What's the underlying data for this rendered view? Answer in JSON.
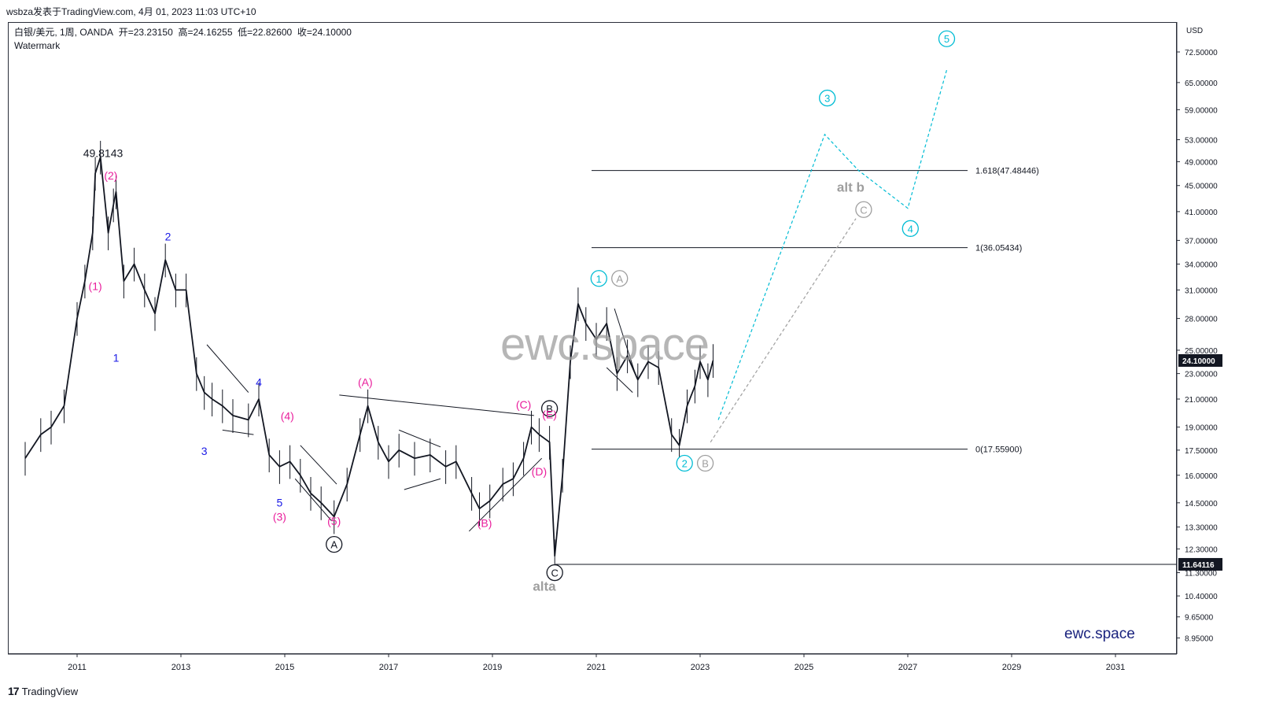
{
  "header": {
    "source_line": "wsbza发表于TradingView.com, 4月 01, 2023 11:03 UTC+10"
  },
  "legend": {
    "symbol": "白银/美元, 1周, OANDA",
    "open": "开=23.23150",
    "high": "高=24.16255",
    "low": "低=22.82600",
    "close": "收=24.10000",
    "watermark_label": "Watermark"
  },
  "watermark_text": "ewc.space",
  "brand_text": "ewc.space",
  "footer": {
    "logo": "17",
    "name": "TradingView"
  },
  "chart_data": {
    "type": "line",
    "title": "白银/美元, 1周, OANDA",
    "price_scale_unit": "USD",
    "scale": "log",
    "x_range": [
      2010.0,
      2032.5
    ],
    "y_range": [
      8.95,
      75.0
    ],
    "x_ticks": [
      "2011",
      "2013",
      "2015",
      "2017",
      "2019",
      "2021",
      "2023",
      "2025",
      "2027",
      "2029",
      "2031"
    ],
    "y_ticks": [
      "72.50000",
      "65.00000",
      "59.00000",
      "53.00000",
      "49.00000",
      "45.00000",
      "41.00000",
      "37.00000",
      "34.00000",
      "31.00000",
      "28.00000",
      "25.00000",
      "23.00000",
      "21.00000",
      "19.00000",
      "17.50000",
      "16.00000",
      "14.50000",
      "13.30000",
      "12.30000",
      "11.30000",
      "10.40000",
      "9.65000",
      "8.95000"
    ],
    "last_price": {
      "label": "24.10000",
      "value": 24.1
    },
    "low_line": {
      "label": "11.64116",
      "value": 11.64116
    },
    "series": [
      {
        "color": "#131722",
        "x": [
          2010.0,
          2010.3,
          2010.5,
          2010.75,
          2011.0,
          2011.15,
          2011.3,
          2011.35,
          2011.45,
          2011.6,
          2011.7,
          2011.75,
          2011.9,
          2012.1,
          2012.3,
          2012.5,
          2012.7,
          2012.9,
          2013.1,
          2013.3,
          2013.45,
          2013.6,
          2013.8,
          2014.0,
          2014.3,
          2014.5,
          2014.7,
          2014.9,
          2015.1,
          2015.3,
          2015.5,
          2015.7,
          2015.95,
          2016.2,
          2016.45,
          2016.6,
          2016.8,
          2017.0,
          2017.2,
          2017.5,
          2017.8,
          2018.1,
          2018.3,
          2018.6,
          2018.75,
          2018.95,
          2019.2,
          2019.4,
          2019.6,
          2019.75,
          2019.9,
          2020.1,
          2020.2,
          2020.35,
          2020.5,
          2020.65,
          2020.8,
          2021.0,
          2021.2,
          2021.4,
          2021.6,
          2021.8,
          2022.0,
          2022.2,
          2022.45,
          2022.6,
          2022.75,
          2022.9,
          2023.0,
          2023.15,
          2023.25
        ],
        "values": [
          17.0,
          18.5,
          19.0,
          20.5,
          28.0,
          32.0,
          38.0,
          47.0,
          49.8,
          38.0,
          42.0,
          44.0,
          32.0,
          34.0,
          31.0,
          28.5,
          34.5,
          31.0,
          31.0,
          23.0,
          21.5,
          21.0,
          20.5,
          19.8,
          19.5,
          21.0,
          17.2,
          16.5,
          16.8,
          16.0,
          15.0,
          14.5,
          13.8,
          15.5,
          18.5,
          20.5,
          18.0,
          16.8,
          17.5,
          17.0,
          17.2,
          16.5,
          16.8,
          15.0,
          14.2,
          14.6,
          15.5,
          15.8,
          17.0,
          19.0,
          18.5,
          18.0,
          12.0,
          16.0,
          24.0,
          29.5,
          27.5,
          26.0,
          27.5,
          23.0,
          24.5,
          22.5,
          24.0,
          23.5,
          18.5,
          17.8,
          20.5,
          22.0,
          24.0,
          22.5,
          24.1
        ]
      }
    ],
    "projections": [
      {
        "color": "#00bcd4",
        "style": "dashed",
        "x": [
          2023.35,
          2025.4,
          2026.05,
          2027.0,
          2027.75
        ],
        "y": [
          19.5,
          54.0,
          47.5,
          41.5,
          68.0
        ]
      },
      {
        "color": "#9e9e9e",
        "style": "dashed",
        "x": [
          2023.2,
          2026.0
        ],
        "y": [
          18.0,
          40.0
        ]
      }
    ],
    "fib_levels": [
      {
        "label": "1.618(47.48446)",
        "value": 47.48446
      },
      {
        "label": "1(36.05434)",
        "value": 36.05434
      },
      {
        "label": "0(17.55900)",
        "value": 17.559
      }
    ],
    "annotations": [
      {
        "text": "49.8143",
        "x": 2011.5,
        "y": 49.8143,
        "color": "#131722"
      },
      {
        "text": "(2)",
        "x": 2011.65,
        "y": 46.0,
        "color": "#e91e9c"
      },
      {
        "text": "2",
        "x": 2012.75,
        "y": 37.0,
        "color": "#1a1ae6"
      },
      {
        "text": "(1)",
        "x": 2011.35,
        "y": 31.0,
        "color": "#e91e9c"
      },
      {
        "text": "1",
        "x": 2011.75,
        "y": 24.0,
        "color": "#1a1ae6"
      },
      {
        "text": "4",
        "x": 2014.5,
        "y": 22.0,
        "color": "#1a1ae6"
      },
      {
        "text": "(4)",
        "x": 2015.05,
        "y": 19.5,
        "color": "#e91e9c"
      },
      {
        "text": "3",
        "x": 2013.45,
        "y": 17.2,
        "color": "#1a1ae6"
      },
      {
        "text": "5",
        "x": 2014.9,
        "y": 14.3,
        "color": "#1a1ae6"
      },
      {
        "text": "(3)",
        "x": 2014.9,
        "y": 13.6,
        "color": "#e91e9c"
      },
      {
        "text": "(5)",
        "x": 2015.95,
        "y": 13.4,
        "color": "#e91e9c"
      },
      {
        "text": "A",
        "x": 2015.95,
        "y": 12.5,
        "color": "#131722",
        "circled": true
      },
      {
        "text": "(A)",
        "x": 2016.55,
        "y": 22.0,
        "color": "#e91e9c"
      },
      {
        "text": "(C)",
        "x": 2019.6,
        "y": 20.3,
        "color": "#e91e9c"
      },
      {
        "text": "B",
        "x": 2020.1,
        "y": 20.3,
        "color": "#131722",
        "circled": true
      },
      {
        "text": "(E)",
        "x": 2020.1,
        "y": 19.6,
        "color": "#e91e9c"
      },
      {
        "text": "(D)",
        "x": 2019.9,
        "y": 16.0,
        "color": "#e91e9c"
      },
      {
        "text": "(B)",
        "x": 2018.85,
        "y": 13.3,
        "color": "#e91e9c"
      },
      {
        "text": "C",
        "x": 2020.2,
        "y": 11.3,
        "color": "#131722",
        "circled": true
      },
      {
        "text": "alta",
        "x": 2020.0,
        "y": 10.6,
        "color": "#9e9e9e"
      },
      {
        "text": "1",
        "x": 2021.05,
        "y": 32.3,
        "color": "#00bcd4",
        "circled": true
      },
      {
        "text": "A",
        "x": 2021.45,
        "y": 32.3,
        "color": "#9e9e9e",
        "circled": true
      },
      {
        "text": "2",
        "x": 2022.7,
        "y": 16.7,
        "color": "#00bcd4",
        "circled": true
      },
      {
        "text": "B",
        "x": 2023.1,
        "y": 16.7,
        "color": "#9e9e9e",
        "circled": true
      },
      {
        "text": "3",
        "x": 2025.45,
        "y": 61.5,
        "color": "#00bcd4",
        "circled": true
      },
      {
        "text": "alt b",
        "x": 2025.9,
        "y": 44.0,
        "color": "#9e9e9e"
      },
      {
        "text": "C",
        "x": 2026.15,
        "y": 41.3,
        "color": "#9e9e9e",
        "circled": true
      },
      {
        "text": "4",
        "x": 2027.05,
        "y": 38.6,
        "color": "#00bcd4",
        "circled": true
      },
      {
        "text": "5",
        "x": 2027.75,
        "y": 76.0,
        "color": "#00bcd4",
        "circled": true
      }
    ]
  }
}
